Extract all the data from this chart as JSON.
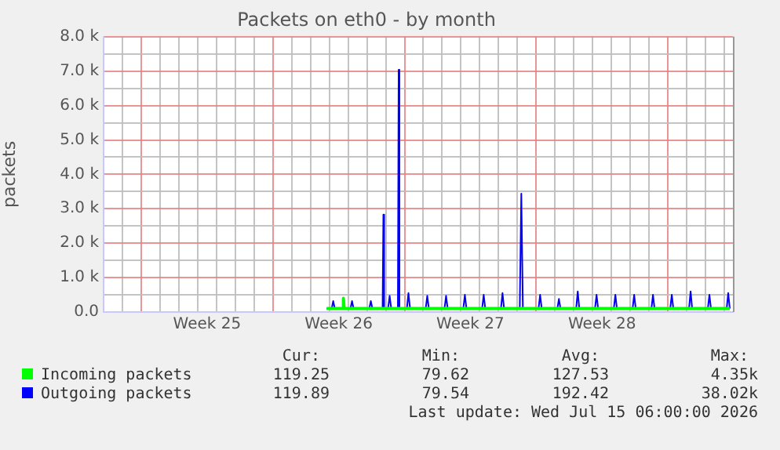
{
  "chart_data": {
    "type": "line",
    "title": "Packets on eth0 - by month",
    "ylabel": "packets",
    "xlim": [
      "2026-06-13T00:00",
      "2026-07-16T11:00"
    ],
    "xticks": [
      {
        "value": "2026-06-13",
        "label": null
      },
      {
        "value": "2026-06-14",
        "label": null
      },
      {
        "value": "2026-06-15",
        "label": null
      },
      {
        "value": "2026-06-16",
        "label": null
      },
      {
        "value": "2026-06-17",
        "label": null
      },
      {
        "value": "2026-06-18",
        "label": null
      },
      {
        "value": "2026-06-18T12:00",
        "label": "Week 25"
      },
      {
        "value": "2026-06-19",
        "label": null
      },
      {
        "value": "2026-06-20",
        "label": null
      },
      {
        "value": "2026-06-21",
        "label": null
      },
      {
        "value": "2026-06-22",
        "label": null
      },
      {
        "value": "2026-06-23",
        "label": null
      },
      {
        "value": "2026-06-24",
        "label": null
      },
      {
        "value": "2026-06-25",
        "label": null
      },
      {
        "value": "2026-06-25T12:00",
        "label": "Week 26"
      },
      {
        "value": "2026-06-26",
        "label": null
      },
      {
        "value": "2026-06-27",
        "label": null
      },
      {
        "value": "2026-06-28",
        "label": null
      },
      {
        "value": "2026-06-29",
        "label": null
      },
      {
        "value": "2026-06-30",
        "label": null
      },
      {
        "value": "2026-07-01",
        "label": null
      },
      {
        "value": "2026-07-02",
        "label": null
      },
      {
        "value": "2026-07-02T12:00",
        "label": "Week 27"
      },
      {
        "value": "2026-07-03",
        "label": null
      },
      {
        "value": "2026-07-04",
        "label": null
      },
      {
        "value": "2026-07-05",
        "label": null
      },
      {
        "value": "2026-07-06",
        "label": null
      },
      {
        "value": "2026-07-07",
        "label": null
      },
      {
        "value": "2026-07-08",
        "label": null
      },
      {
        "value": "2026-07-09",
        "label": null
      },
      {
        "value": "2026-07-09T12:00",
        "label": "Week 28"
      },
      {
        "value": "2026-07-10",
        "label": null
      },
      {
        "value": "2026-07-11",
        "label": null
      },
      {
        "value": "2026-07-12",
        "label": null
      },
      {
        "value": "2026-07-13",
        "label": null
      },
      {
        "value": "2026-07-14",
        "label": null
      },
      {
        "value": "2026-07-15",
        "label": null
      },
      {
        "value": "2026-07-16",
        "label": null
      }
    ],
    "ylim": [
      0,
      8000
    ],
    "yticks": [
      {
        "value": 0,
        "label": "0.0"
      },
      {
        "value": 500,
        "label": null
      },
      {
        "value": 1000,
        "label": "1.0 k"
      },
      {
        "value": 1500,
        "label": null
      },
      {
        "value": 2000,
        "label": "2.0 k"
      },
      {
        "value": 2500,
        "label": null
      },
      {
        "value": 3000,
        "label": "3.0 k"
      },
      {
        "value": 3500,
        "label": null
      },
      {
        "value": 4000,
        "label": "4.0 k"
      },
      {
        "value": 4500,
        "label": null
      },
      {
        "value": 5000,
        "label": "5.0 k"
      },
      {
        "value": 5500,
        "label": null
      },
      {
        "value": 6000,
        "label": "6.0 k"
      },
      {
        "value": 6500,
        "label": null
      },
      {
        "value": 7000,
        "label": "7.0 k"
      },
      {
        "value": 7500,
        "label": null
      },
      {
        "value": 8000,
        "label": "8.0 k"
      }
    ],
    "grid": true,
    "legend": "bottom",
    "marker": "none",
    "line_style": "solid",
    "series": [
      {
        "name": "Incoming packets",
        "color": "#00ff00",
        "x": [
          "2026-06-24T20:40",
          "2026-06-25T17:00",
          "2026-06-25T18:00",
          "2026-06-25T19:00",
          "2026-07-16T07:00"
        ],
        "values": [
          100,
          100,
          400,
          100,
          100
        ]
      },
      {
        "name": "Outgoing packets",
        "color": "#0000ff",
        "x": [
          "2026-06-24T20:40",
          "2026-06-25T03:00",
          "2026-06-25T05:00",
          "2026-06-25T07:00",
          "2026-06-26T03:00",
          "2026-06-26T05:00",
          "2026-06-26T07:00",
          "2026-06-27T03:00",
          "2026-06-27T05:00",
          "2026-06-27T07:00",
          "2026-06-27T20:00",
          "2026-06-27T21:00",
          "2026-06-27T22:00",
          "2026-06-28T03:00",
          "2026-06-28T05:00",
          "2026-06-28T07:00",
          "2026-06-28T15:30",
          "2026-06-28T16:30",
          "2026-06-28T17:30",
          "2026-06-29T03:00",
          "2026-06-29T05:00",
          "2026-06-29T07:00",
          "2026-06-30T03:00",
          "2026-06-30T05:00",
          "2026-06-30T07:00",
          "2026-07-01T03:00",
          "2026-07-01T05:00",
          "2026-07-01T07:00",
          "2026-07-02T03:00",
          "2026-07-02T05:00",
          "2026-07-02T07:00",
          "2026-07-03T03:00",
          "2026-07-03T05:00",
          "2026-07-03T07:00",
          "2026-07-04T03:00",
          "2026-07-04T05:00",
          "2026-07-04T07:00",
          "2026-07-05T03:00",
          "2026-07-05T05:00",
          "2026-07-05T07:00",
          "2026-07-06T03:00",
          "2026-07-06T05:00",
          "2026-07-06T07:00",
          "2026-07-07T03:00",
          "2026-07-07T05:00",
          "2026-07-07T07:00",
          "2026-07-08T03:00",
          "2026-07-08T05:00",
          "2026-07-08T07:00",
          "2026-07-09T03:00",
          "2026-07-09T05:00",
          "2026-07-09T07:00",
          "2026-07-10T03:00",
          "2026-07-10T05:00",
          "2026-07-10T07:00",
          "2026-07-11T03:00",
          "2026-07-11T05:00",
          "2026-07-11T07:00",
          "2026-07-12T03:00",
          "2026-07-12T05:00",
          "2026-07-12T07:00",
          "2026-07-13T03:00",
          "2026-07-13T05:00",
          "2026-07-13T07:00",
          "2026-07-14T03:00",
          "2026-07-14T05:00",
          "2026-07-14T07:00",
          "2026-07-15T03:00",
          "2026-07-15T05:00",
          "2026-07-15T07:00",
          "2026-07-16T03:00",
          "2026-07-16T05:00",
          "2026-07-16T07:00"
        ],
        "values": [
          100,
          100,
          320,
          100,
          100,
          320,
          100,
          100,
          320,
          100,
          100,
          2830,
          100,
          100,
          470,
          100,
          100,
          7040,
          100,
          100,
          550,
          100,
          100,
          470,
          100,
          100,
          470,
          100,
          100,
          500,
          100,
          100,
          500,
          100,
          100,
          550,
          100,
          100,
          3440,
          100,
          100,
          500,
          100,
          100,
          380,
          100,
          100,
          600,
          100,
          100,
          500,
          100,
          100,
          500,
          100,
          100,
          500,
          100,
          100,
          500,
          100,
          100,
          500,
          100,
          100,
          600,
          100,
          100,
          500,
          100,
          100,
          550,
          100
        ]
      }
    ],
    "annotations": [
      "Cur:",
      "Min:",
      "Avg:",
      "Max:",
      "119.25",
      "79.62",
      "127.53",
      "4.35k",
      "119.89",
      "79.54",
      "192.42",
      "38.02k",
      "Last update: Wed Jul 15 06:00:00 2026"
    ]
  }
}
